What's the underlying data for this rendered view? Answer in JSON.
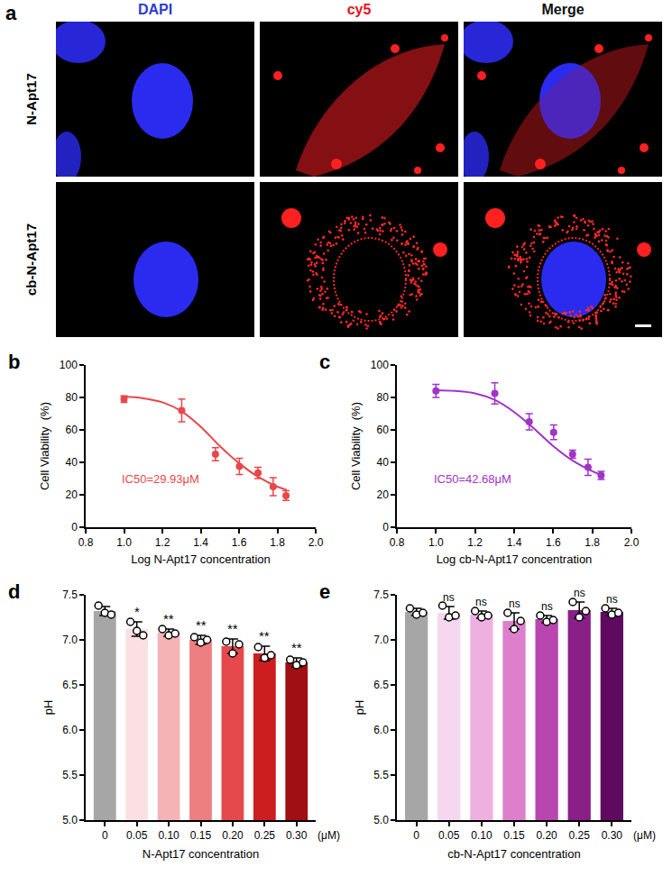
{
  "images": {
    "panel": "a",
    "columns": [
      "DAPI",
      "cy5",
      "Merge"
    ],
    "rows": [
      "N-Apt17",
      "cb-N-Apt17"
    ]
  },
  "chart_data": [
    {
      "panel": "b",
      "type": "scatter",
      "x": [
        1.0,
        1.301,
        1.477,
        1.602,
        1.699,
        1.778,
        1.845
      ],
      "values": [
        79,
        72,
        45,
        37.5,
        33.5,
        25,
        19.5
      ],
      "errors": [
        2,
        7,
        4,
        5,
        3.5,
        5.5,
        3
      ],
      "fit": {
        "x": [
          1.0,
          1.1,
          1.2,
          1.3,
          1.4,
          1.5,
          1.6,
          1.7,
          1.8,
          1.85
        ],
        "values": [
          80.5,
          79.5,
          77,
          71.5,
          62,
          50,
          39.5,
          31,
          25,
          23
        ]
      },
      "color": "#e8474a",
      "annotations": [
        "IC50=29.93μM"
      ],
      "xlabel": "Log N-Apt17 concentration",
      "ylabel": "Cell Viability  (%)",
      "xlim": [
        0.8,
        2.0
      ],
      "xticks": [
        0.8,
        {
          "value": 1.0,
          "label": "1.0"
        },
        1.2,
        1.4,
        1.6,
        1.8,
        {
          "value": 2.0,
          "label": "2.0"
        }
      ],
      "ylim": [
        0,
        100
      ],
      "yticks": [
        0,
        20,
        40,
        60,
        80,
        100
      ]
    },
    {
      "panel": "c",
      "type": "scatter",
      "x": [
        1.0,
        1.301,
        1.477,
        1.602,
        1.699,
        1.778,
        1.845
      ],
      "values": [
        84,
        82.5,
        65,
        58.5,
        45,
        37,
        32
      ],
      "errors": [
        4,
        6.5,
        5,
        4.5,
        2.5,
        5,
        2.5
      ],
      "fit": {
        "x": [
          1.0,
          1.1,
          1.2,
          1.3,
          1.4,
          1.5,
          1.6,
          1.7,
          1.8,
          1.85
        ],
        "values": [
          84.5,
          84,
          82.5,
          78.5,
          71,
          61,
          50,
          41,
          34.5,
          32
        ]
      },
      "color": "#a033c8",
      "annotations": [
        "IC50=42.68μM"
      ],
      "xlabel": "Log cb-N-Apt17 concentration",
      "ylabel": "Cell Viability  (%)",
      "xlim": [
        0.8,
        2.0
      ],
      "xticks": [
        0.8,
        {
          "value": 1.0,
          "label": "1.0"
        },
        1.2,
        1.4,
        1.6,
        1.8,
        {
          "value": 2.0,
          "label": "2.0"
        }
      ],
      "ylim": [
        0,
        100
      ],
      "yticks": [
        0,
        20,
        40,
        60,
        80,
        100
      ]
    },
    {
      "panel": "d",
      "type": "bar",
      "categories": [
        "0",
        "0.05",
        "0.10",
        "0.15",
        "0.20",
        "0.25",
        "0.30"
      ],
      "values": [
        7.32,
        7.12,
        7.08,
        7.0,
        6.93,
        6.85,
        6.75
      ],
      "errors": [
        0.05,
        0.08,
        0.04,
        0.05,
        0.08,
        0.08,
        0.05
      ],
      "points": [
        [
          7.38,
          7.3,
          7.28
        ],
        [
          7.2,
          7.1,
          7.05
        ],
        [
          7.12,
          7.05,
          7.07
        ],
        [
          7.03,
          6.97,
          7.0
        ],
        [
          6.98,
          6.85,
          6.95
        ],
        [
          6.92,
          6.8,
          6.83
        ],
        [
          6.78,
          6.72,
          6.75
        ]
      ],
      "colors": [
        "#a6a6a6",
        "#fbe0e3",
        "#f5b3b5",
        "#ee7f80",
        "#e6494b",
        "#cc1d1f",
        "#a00f12"
      ],
      "significance": [
        null,
        "*",
        "**",
        "**",
        "**",
        "**",
        "**"
      ],
      "annotations": [
        "(μM)"
      ],
      "xlabel": "N-Apt17 concentration",
      "ylabel": "pH",
      "ylim": [
        5.0,
        7.5
      ],
      "yticks": [
        {
          "value": 5.0,
          "label": "5.0"
        },
        5.5,
        {
          "value": 6.0,
          "label": "6.0"
        },
        6.5,
        {
          "value": 7.0,
          "label": "7.0"
        },
        7.5
      ]
    },
    {
      "panel": "e",
      "type": "bar",
      "categories": [
        "0",
        "0.05",
        "0.10",
        "0.15",
        "0.20",
        "0.25",
        "0.30"
      ],
      "values": [
        7.31,
        7.3,
        7.28,
        7.21,
        7.23,
        7.33,
        7.31
      ],
      "errors": [
        0.04,
        0.07,
        0.04,
        0.09,
        0.04,
        0.09,
        0.04
      ],
      "points": [
        [
          7.35,
          7.28,
          7.3
        ],
        [
          7.38,
          7.25,
          7.27
        ],
        [
          7.32,
          7.25,
          7.27
        ],
        [
          7.3,
          7.12,
          7.21
        ],
        [
          7.27,
          7.2,
          7.22
        ],
        [
          7.42,
          7.25,
          7.32
        ],
        [
          7.35,
          7.28,
          7.3
        ]
      ],
      "colors": [
        "#a6a6a6",
        "#f6d7ef",
        "#eeb0e0",
        "#dd7fcc",
        "#b846ae",
        "#8a1f88",
        "#5f0a5f"
      ],
      "significance": [
        null,
        "ns",
        "ns",
        "ns",
        "ns",
        "ns",
        "ns"
      ],
      "annotations": [
        "(μM)"
      ],
      "xlabel": "cb-N-Apt17 concentration",
      "ylabel": "pH",
      "ylim": [
        5.0,
        7.5
      ],
      "yticks": [
        {
          "value": 5.0,
          "label": "5.0"
        },
        5.5,
        {
          "value": 6.0,
          "label": "6.0"
        },
        6.5,
        {
          "value": 7.0,
          "label": "7.0"
        },
        7.5
      ]
    }
  ]
}
